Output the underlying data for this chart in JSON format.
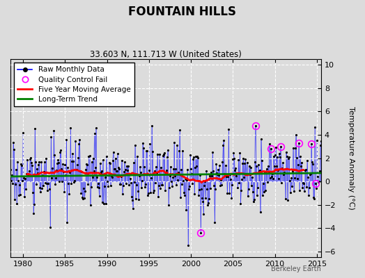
{
  "title": "FOUNTAIN HILLS",
  "subtitle": "33.603 N, 111.713 W (United States)",
  "ylabel": "Temperature Anomaly (°C)",
  "watermark": "Berkeley Earth",
  "xlim": [
    1978.5,
    2015.5
  ],
  "ylim": [
    -6.5,
    10.5
  ],
  "yticks": [
    -6,
    -4,
    -2,
    0,
    2,
    4,
    6,
    8,
    10
  ],
  "xticks": [
    1980,
    1985,
    1990,
    1995,
    2000,
    2005,
    2010,
    2015
  ],
  "bg_color": "#dcdcdc",
  "fig_color": "#dcdcdc",
  "seed": 17
}
